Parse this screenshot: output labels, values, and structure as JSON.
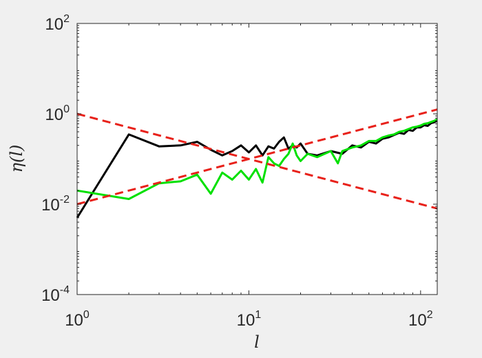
{
  "chart_data": {
    "type": "line",
    "xscale": "log",
    "yscale": "log",
    "xlim": [
      1,
      125
    ],
    "ylim": [
      0.0001,
      100
    ],
    "xlabel": "l",
    "ylabel": "η(l)",
    "grid": false,
    "legend": "none",
    "x_ticks": [
      {
        "value": 1,
        "base": "10",
        "exp": "0"
      },
      {
        "value": 10,
        "base": "10",
        "exp": "1"
      },
      {
        "value": 100,
        "base": "10",
        "exp": "2"
      }
    ],
    "y_ticks": [
      {
        "value": 0.0001,
        "base": "10",
        "exp": "-4"
      },
      {
        "value": 0.01,
        "base": "10",
        "exp": "-2"
      },
      {
        "value": 1,
        "base": "10",
        "exp": "0"
      },
      {
        "value": 100,
        "base": "10",
        "exp": "2"
      }
    ],
    "series": [
      {
        "color": "#000000",
        "style": "solid",
        "x": [
          1,
          2,
          3,
          4,
          5,
          6,
          7,
          8,
          9,
          10,
          11,
          12,
          13,
          14,
          15,
          16,
          17,
          18,
          19,
          20,
          22,
          25,
          30,
          35,
          40,
          45,
          50,
          55,
          60,
          65,
          70,
          75,
          80,
          85,
          90,
          95,
          100,
          105,
          110,
          115,
          120,
          125
        ],
        "y": [
          0.005,
          0.35,
          0.19,
          0.2,
          0.24,
          0.16,
          0.12,
          0.15,
          0.2,
          0.14,
          0.2,
          0.12,
          0.19,
          0.17,
          0.24,
          0.3,
          0.17,
          0.2,
          0.18,
          0.22,
          0.13,
          0.12,
          0.15,
          0.13,
          0.2,
          0.18,
          0.24,
          0.22,
          0.28,
          0.3,
          0.34,
          0.38,
          0.36,
          0.44,
          0.42,
          0.5,
          0.5,
          0.56,
          0.54,
          0.62,
          0.65,
          0.7
        ]
      },
      {
        "color": "#00e000",
        "style": "solid",
        "x": [
          1,
          2,
          3,
          4,
          5,
          6,
          7,
          8,
          9,
          10,
          11,
          12,
          13,
          14,
          15,
          16,
          17,
          18,
          19,
          20,
          22,
          25,
          30,
          33,
          35,
          40,
          45,
          50,
          55,
          60,
          65,
          70,
          75,
          80,
          85,
          90,
          95,
          100,
          105,
          110,
          115,
          120,
          125
        ],
        "y": [
          0.02,
          0.013,
          0.029,
          0.032,
          0.045,
          0.017,
          0.05,
          0.035,
          0.055,
          0.035,
          0.06,
          0.03,
          0.11,
          0.08,
          0.07,
          0.1,
          0.13,
          0.22,
          0.12,
          0.09,
          0.13,
          0.11,
          0.15,
          0.08,
          0.15,
          0.18,
          0.2,
          0.25,
          0.25,
          0.3,
          0.33,
          0.35,
          0.4,
          0.42,
          0.46,
          0.5,
          0.52,
          0.55,
          0.6,
          0.62,
          0.66,
          0.7,
          0.75
        ]
      },
      {
        "color": "#e8211a",
        "style": "dashed",
        "x": [
          1,
          125
        ],
        "y": [
          1,
          0.008
        ]
      },
      {
        "color": "#e8211a",
        "style": "dashed",
        "x": [
          1,
          125
        ],
        "y": [
          0.01,
          1.25
        ]
      }
    ]
  }
}
